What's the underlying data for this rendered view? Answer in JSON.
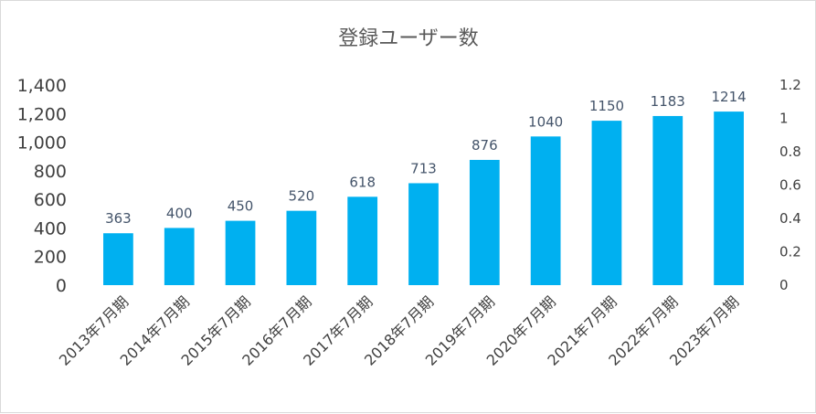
{
  "chart_data": {
    "type": "bar",
    "title": "登録ユーザー数",
    "xlabel": "",
    "ylabel": "",
    "categories": [
      "2013年7月期",
      "2014年7月期",
      "2015年7月期",
      "2016年7月期",
      "2017年7月期",
      "2018年7月期",
      "2019年7月期",
      "2020年7月期",
      "2021年7月期",
      "2022年7月期",
      "2023年7月期"
    ],
    "values": [
      363,
      400,
      450,
      520,
      618,
      713,
      876,
      1040,
      1150,
      1183,
      1214
    ],
    "data_labels": [
      "363",
      "400",
      "450",
      "520",
      "618",
      "713",
      "876",
      "1040",
      "1150",
      "1183",
      "1214"
    ],
    "ylim": [
      0,
      1400
    ],
    "y_ticks": [
      "0",
      "200",
      "400",
      "600",
      "800",
      "1,000",
      "1,200",
      "1,400"
    ],
    "y2lim": [
      0,
      1.2
    ],
    "y2_ticks": [
      "0",
      "0.2",
      "0.4",
      "0.6",
      "0.8",
      "1",
      "1.2"
    ],
    "grid": false,
    "legend": "none",
    "bar_color": "#00b0f0",
    "label_color": "#44546a"
  }
}
